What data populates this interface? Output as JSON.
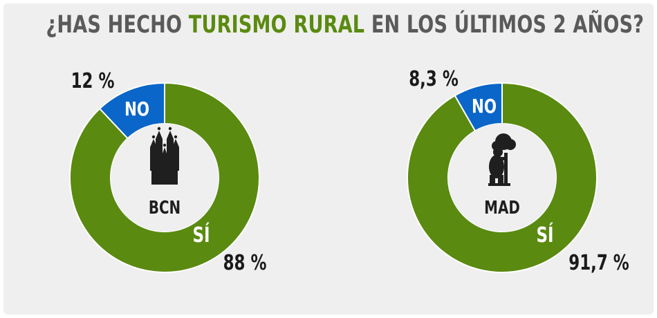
{
  "title": {
    "prefix": "¿HAS HECHO ",
    "highlight": "TURISMO RURAL",
    "suffix": " EN LOS ÚLTIMOS 2 AÑOS?"
  },
  "colors": {
    "yes": "#5a8a10",
    "no": "#0a66c8",
    "background": "#efefef",
    "hole": "#efefef"
  },
  "chart_data": [
    {
      "type": "pie",
      "variant": "donut",
      "center_label": "BCN",
      "center_icon": "sagrada-familia-icon",
      "slices": [
        {
          "label": "SÍ",
          "value": 88,
          "value_text": "88 %"
        },
        {
          "label": "NO",
          "value": 12,
          "value_text": "12 %"
        }
      ]
    },
    {
      "type": "pie",
      "variant": "donut",
      "center_label": "MAD",
      "center_icon": "bear-and-strawberry-tree-icon",
      "slices": [
        {
          "label": "SÍ",
          "value": 91.7,
          "value_text": "91,7 %"
        },
        {
          "label": "NO",
          "value": 8.3,
          "value_text": "8,3 %"
        }
      ]
    }
  ]
}
